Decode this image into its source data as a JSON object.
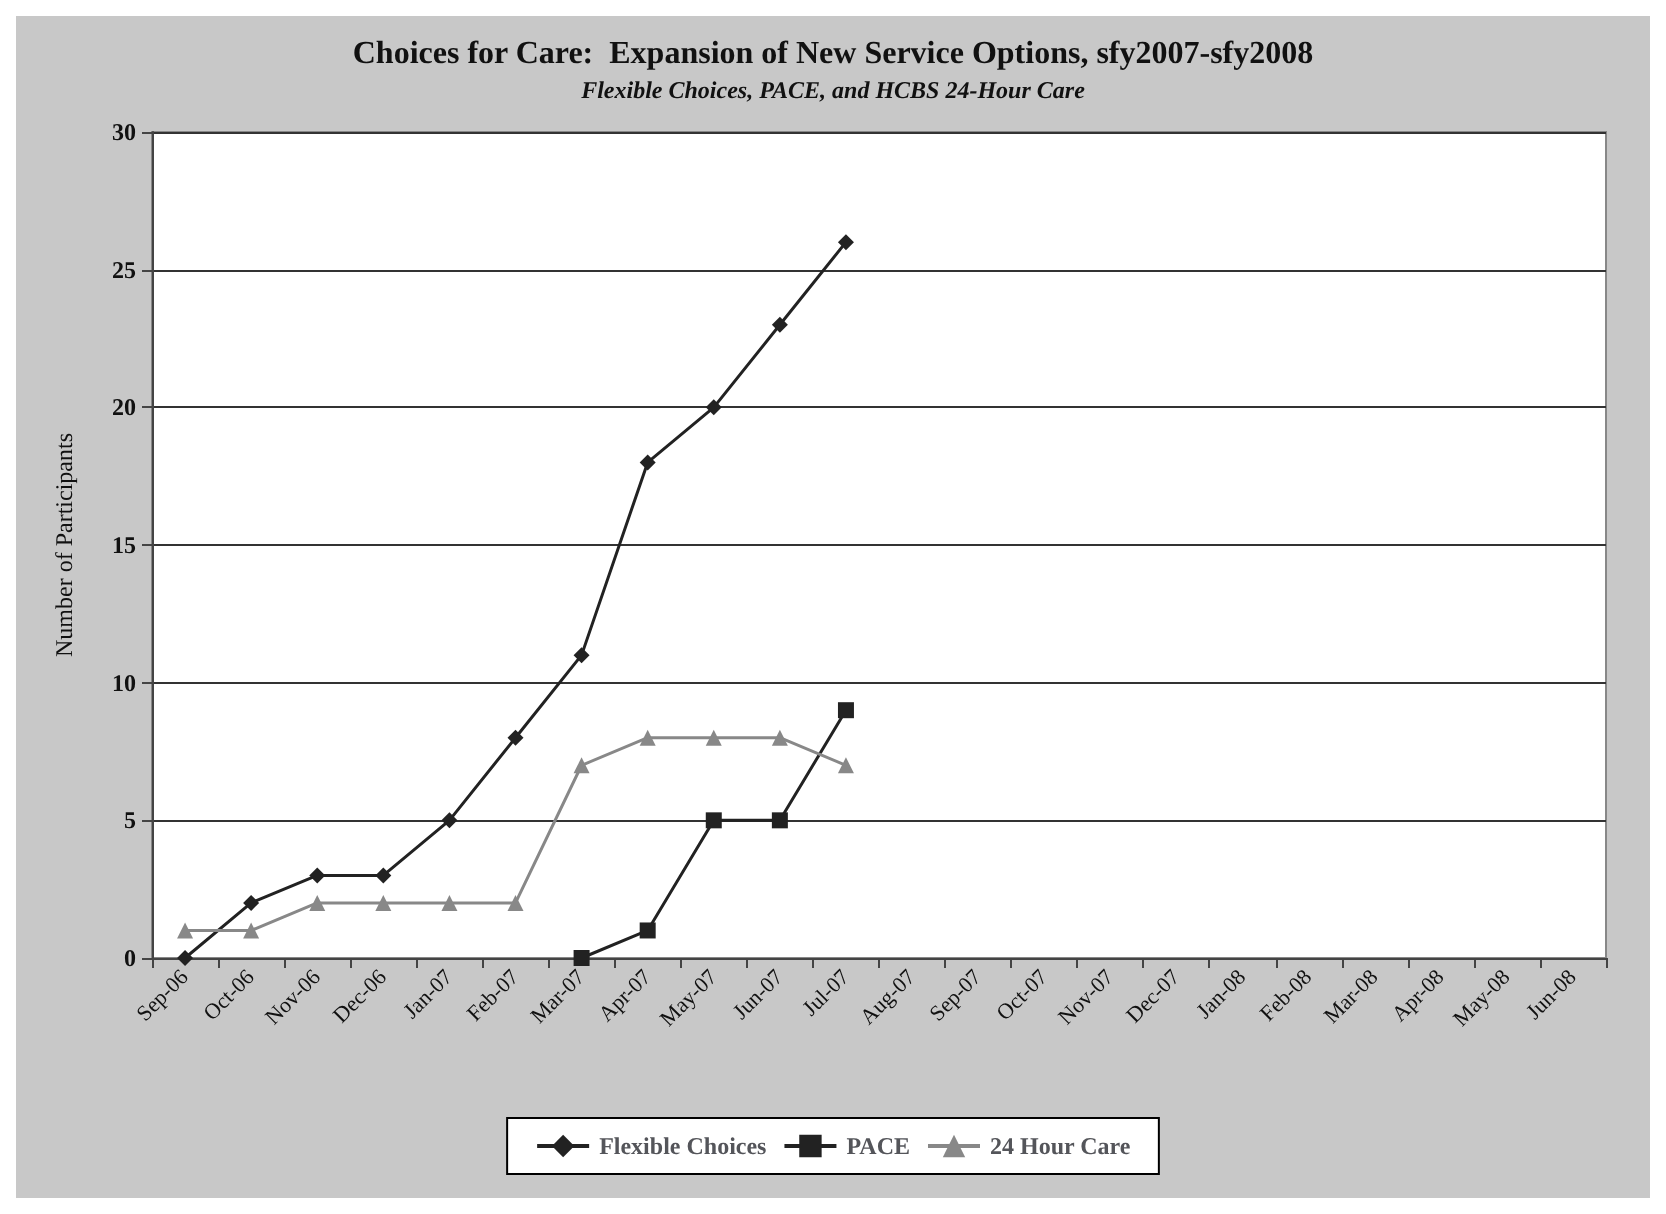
{
  "chart_data": {
    "type": "line",
    "title": "Choices for Care:  Expansion of New Service Options, sfy2007-sfy2008",
    "subtitle": "Flexible Choices, PACE, and HCBS 24-Hour Care",
    "ylabel": "Number of Participants",
    "categories": [
      "Sep-06",
      "Oct-06",
      "Nov-06",
      "Dec-06",
      "Jan-07",
      "Feb-07",
      "Mar-07",
      "Apr-07",
      "May-07",
      "Jun-07",
      "Jul-07",
      "Aug-07",
      "Sep-07",
      "Oct-07",
      "Nov-07",
      "Dec-07",
      "Jan-08",
      "Feb-08",
      "Mar-08",
      "Apr-08",
      "May-08",
      "Jun-08"
    ],
    "series": [
      {
        "name": "Flexible Choices",
        "color": "#222222",
        "marker": "diamond",
        "values": [
          0,
          2,
          3,
          3,
          5,
          8,
          11,
          18,
          20,
          23,
          26,
          null,
          null,
          null,
          null,
          null,
          null,
          null,
          null,
          null,
          null,
          null
        ]
      },
      {
        "name": "PACE",
        "color": "#222222",
        "marker": "square",
        "values": [
          null,
          null,
          null,
          null,
          null,
          null,
          0,
          1,
          5,
          5,
          9,
          null,
          null,
          null,
          null,
          null,
          null,
          null,
          null,
          null,
          null,
          null
        ]
      },
      {
        "name": "24 Hour Care",
        "color": "#888888",
        "marker": "triangle",
        "values": [
          1,
          1,
          2,
          2,
          2,
          2,
          7,
          8,
          8,
          8,
          7,
          null,
          null,
          null,
          null,
          null,
          null,
          null,
          null,
          null,
          null,
          null
        ]
      }
    ],
    "ylim": [
      0,
      30
    ],
    "yticks": [
      0,
      5,
      10,
      15,
      20,
      25,
      30
    ],
    "grid": "y",
    "legend": "bottom"
  }
}
